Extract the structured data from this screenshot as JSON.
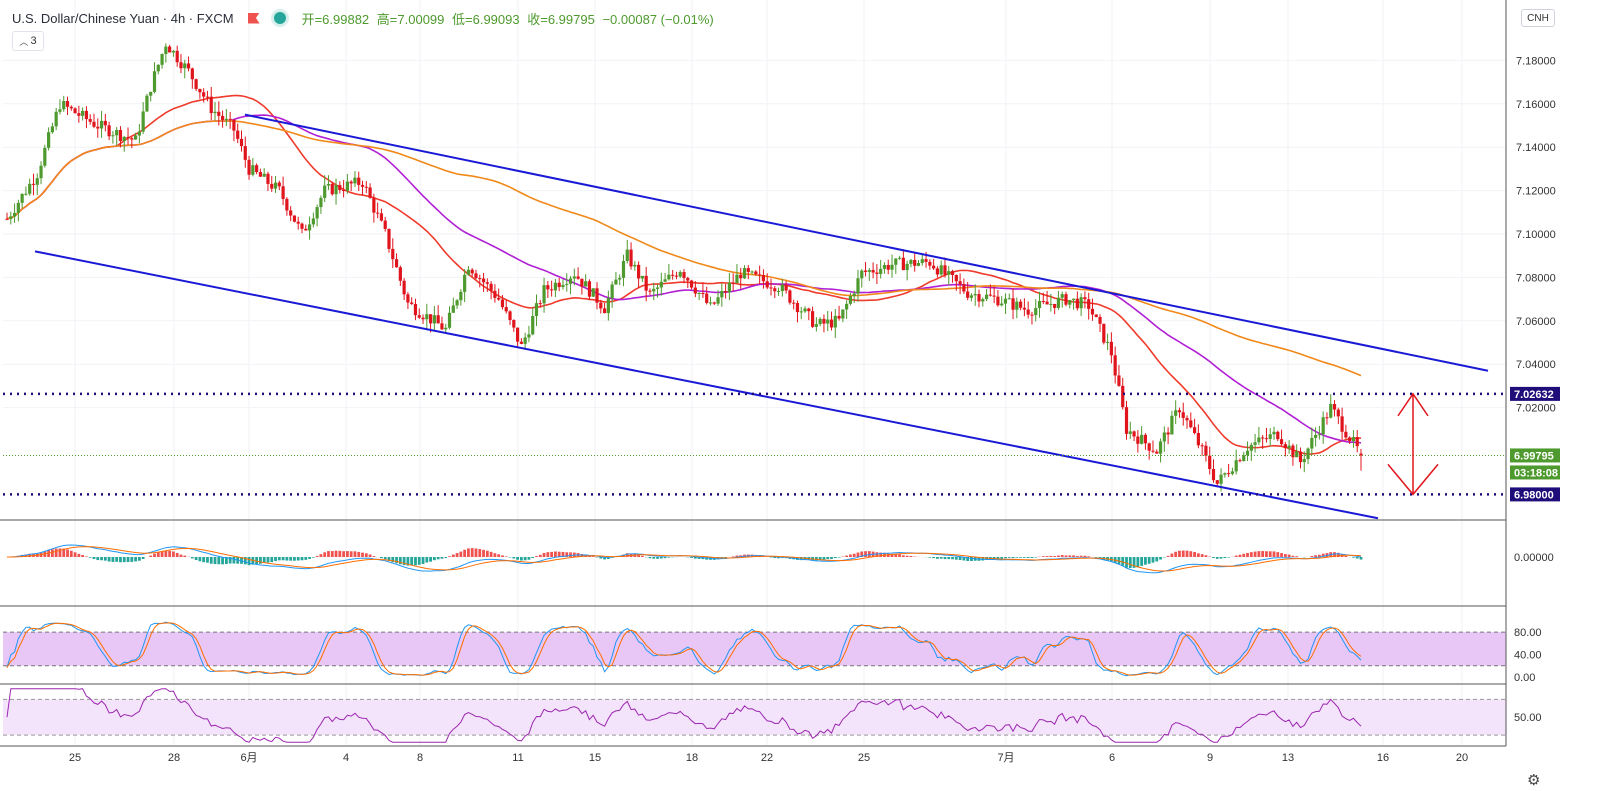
{
  "header": {
    "symbol": "U.S. Dollar/Chinese Yuan · 4h · FXCM",
    "open": "开=6.99882",
    "high": "高=7.00099",
    "low": "低=6.99093",
    "close": "收=6.99795",
    "change": "−0.00087 (−0.01%)",
    "indicators_count": "3",
    "currency_button": "CNH"
  },
  "colors": {
    "up": "#4e9a2e",
    "down": "#e0141c",
    "channel": "#1a1ad6",
    "ma_fast": "#ef3b2c",
    "ma_mid": "#b01fd4",
    "ma_slow": "#f0891a",
    "level_line": "#1f0e7a",
    "stoch_fill": "#e8c7f7",
    "rsi_fill": "#f3e3fb",
    "macd_pos": "#ef5350",
    "macd_neg": "#26a69a"
  },
  "chart_data": {
    "type": "candlestick",
    "title": "U.S. Dollar/Chinese Yuan · 4h · FXCM",
    "y_ticks": [
      "7.18000",
      "7.16000",
      "7.14000",
      "7.12000",
      "7.10000",
      "7.08000",
      "7.06000",
      "7.04000",
      "7.02000"
    ],
    "y_range": [
      6.965,
      7.195
    ],
    "x_ticks": [
      "25",
      "28",
      "6月",
      "4",
      "8",
      "11",
      "15",
      "18",
      "22",
      "25",
      "7月",
      "6",
      "9",
      "13",
      "16",
      "20"
    ],
    "price_labels": {
      "resistance": "7.02632",
      "last": "6.99795",
      "countdown": "03:18:08",
      "support": "6.98000"
    },
    "levels": {
      "resistance": 7.02632,
      "support": 6.98,
      "last": 6.99795
    },
    "candles": [],
    "macd": {
      "zero_label": "0.00000"
    },
    "stochastic": {
      "ticks": [
        "80.00",
        "40.00",
        "0.00"
      ],
      "bands": [
        80,
        20
      ]
    },
    "rsi": {
      "ticks": [
        "50.00"
      ],
      "bands": [
        70,
        30
      ]
    }
  }
}
